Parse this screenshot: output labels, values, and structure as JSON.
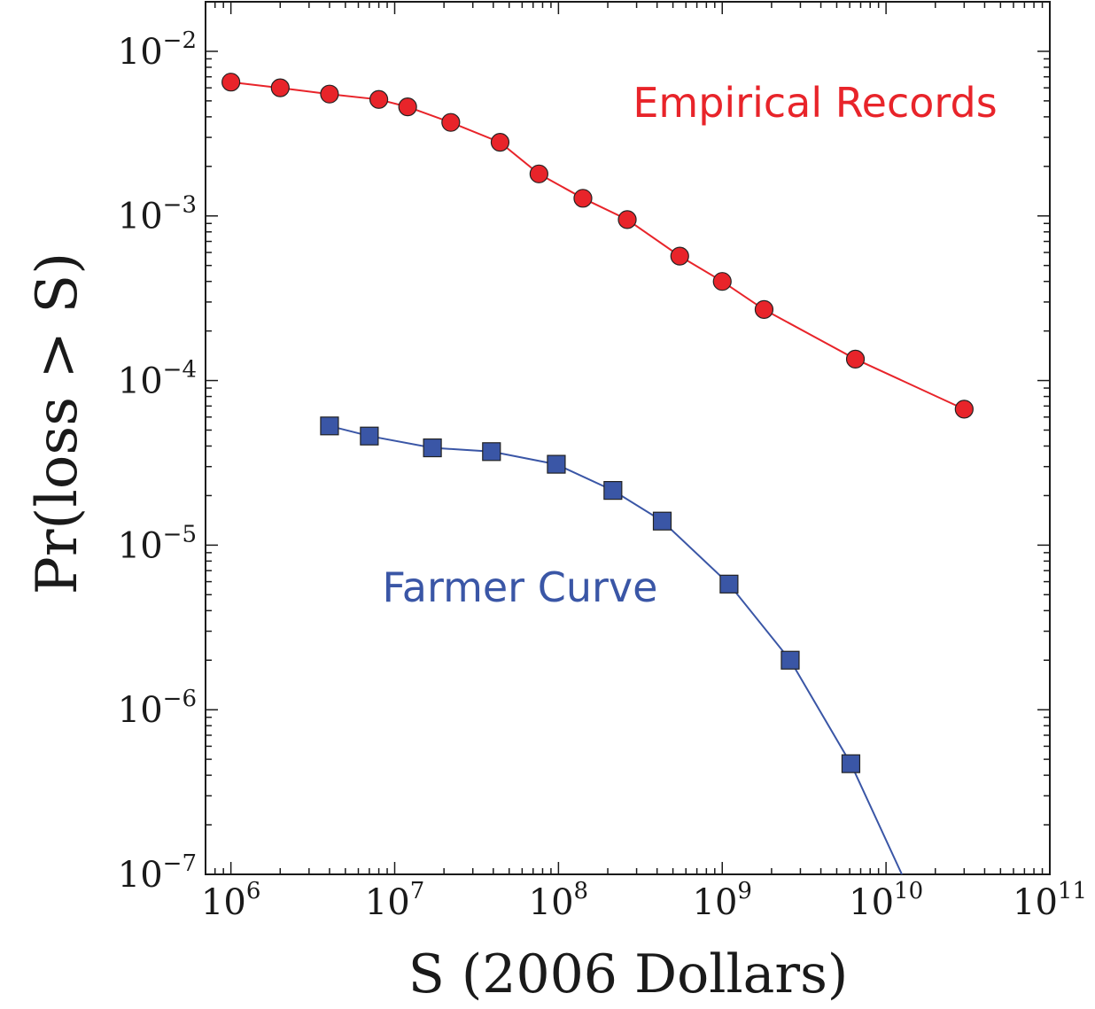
{
  "chart_data": {
    "type": "line",
    "title": "",
    "xlabel": "S (2006 Dollars)",
    "ylabel": "Pr(loss > S)",
    "xscale": "log",
    "yscale": "log",
    "xlim": [
      700000,
      100000000000
    ],
    "ylim": [
      1e-07,
      0.02
    ],
    "grid": false,
    "x_ticks": [
      {
        "value": 1000000,
        "base": "10",
        "exp": "6"
      },
      {
        "value": 10000000,
        "base": "10",
        "exp": "7"
      },
      {
        "value": 100000000,
        "base": "10",
        "exp": "8"
      },
      {
        "value": 1000000000,
        "base": "10",
        "exp": "9"
      },
      {
        "value": 10000000000,
        "base": "10",
        "exp": "10"
      },
      {
        "value": 100000000000,
        "base": "10",
        "exp": "11"
      }
    ],
    "y_ticks": [
      {
        "value": 0.01,
        "base": "10",
        "exp": "−2"
      },
      {
        "value": 0.001,
        "base": "10",
        "exp": "−3"
      },
      {
        "value": 0.0001,
        "base": "10",
        "exp": "−4"
      },
      {
        "value": 1e-05,
        "base": "10",
        "exp": "−5"
      },
      {
        "value": 1e-06,
        "base": "10",
        "exp": "−6"
      },
      {
        "value": 1e-07,
        "base": "10",
        "exp": "−7"
      }
    ],
    "series": [
      {
        "name": "Empirical Records",
        "color": "#e8242a",
        "marker": "circle",
        "x": [
          1000000,
          2000000,
          4000000,
          8000000,
          12000000,
          22000000,
          44000000,
          76000000,
          141000000,
          263000000,
          550000000,
          1000000000,
          1800000000,
          6500000000,
          30000000000
        ],
        "y": [
          0.0065,
          0.006,
          0.0055,
          0.0051,
          0.0046,
          0.0037,
          0.0028,
          0.0018,
          0.00128,
          0.00095,
          0.00057,
          0.0004,
          0.00027,
          0.000135,
          6.7e-05
        ]
      },
      {
        "name": "Farmer Curve",
        "color": "#3a56a6",
        "marker": "square",
        "x": [
          4000000,
          7000000,
          17000000,
          39000000,
          97000000,
          215000000,
          430000000,
          1100000000,
          2600000000,
          6100000000,
          12500000000
        ],
        "y": [
          5.3e-05,
          4.6e-05,
          3.9e-05,
          3.7e-05,
          3.1e-05,
          2.15e-05,
          1.4e-05,
          5.8e-06,
          2e-06,
          4.7e-07,
          1e-07
        ],
        "marker_count": 10
      }
    ]
  }
}
